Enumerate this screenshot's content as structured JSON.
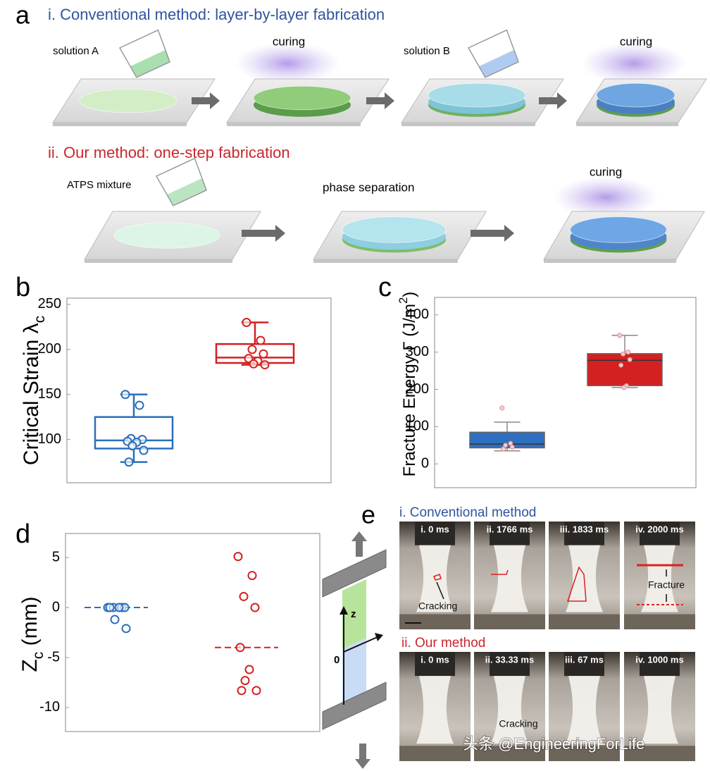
{
  "panel_a": {
    "label": "a",
    "conventional": {
      "title": "i. Conventional method: layer-by-layer fabrication",
      "steps": [
        "solution A",
        "curing",
        "solution B",
        "curing"
      ]
    },
    "ours": {
      "title": "ii. Our method: one-step fabrication",
      "steps": [
        "ATPS mixture",
        "phase separation",
        "curing"
      ]
    }
  },
  "chart_data": [
    {
      "type": "box",
      "panel_label": "b",
      "ylabel": {
        "text": "Critical Strain λ",
        "subscript": "c"
      },
      "ylim": [
        52,
        257
      ],
      "yticks": [
        100,
        150,
        200,
        250
      ],
      "filled": false,
      "series": [
        {
          "color": "#2a6ebb",
          "box": {
            "min": 75,
            "q1": 90,
            "median": 99,
            "q3": 125,
            "max": 150
          },
          "points": [
            150,
            138,
            101,
            100,
            98,
            97,
            93,
            88,
            75
          ]
        },
        {
          "color": "#d42020",
          "box": {
            "min": 183,
            "q1": 185,
            "median": 191,
            "q3": 206,
            "max": 230
          },
          "points": [
            230,
            210,
            200,
            195,
            190,
            187,
            184,
            183
          ]
        }
      ]
    },
    {
      "type": "box",
      "panel_label": "c",
      "ylabel": {
        "text": "Fracture Energy Γ (J/m",
        "superscript": "2",
        "suffix": ")"
      },
      "ylim": [
        -64,
        447
      ],
      "yticks": [
        0,
        100,
        200,
        300,
        400
      ],
      "filled": true,
      "series": [
        {
          "color": "#2f6fbf",
          "box": {
            "min": 35,
            "q1": 43,
            "median": 53,
            "q3": 85,
            "max": 112
          },
          "points": [
            150,
            55,
            50,
            45,
            40
          ]
        },
        {
          "color": "#d42020",
          "box": {
            "min": 205,
            "q1": 210,
            "median": 278,
            "q3": 296,
            "max": 345
          },
          "points": [
            345,
            300,
            295,
            280,
            265,
            210,
            205
          ]
        }
      ]
    },
    {
      "type": "strip",
      "panel_label": "d",
      "ylabel": {
        "text": "Z",
        "subscript": "c",
        "suffix": " (mm)"
      },
      "ylim": [
        -12.4,
        7.4
      ],
      "yticks": [
        5,
        0,
        -5,
        -10
      ],
      "series": [
        {
          "color": "#2a6ebb",
          "mean": 0,
          "points": [
            0,
            0,
            0,
            0,
            0,
            0,
            -1.2,
            -2.1
          ]
        },
        {
          "color": "#d42020",
          "mean": -4,
          "points": [
            5.1,
            3.2,
            1.1,
            0,
            -4,
            -6.2,
            -7.3,
            -8.3,
            -8.3
          ]
        }
      ]
    }
  ],
  "schematic": {
    "axis_label": "z",
    "origin_label": "0"
  },
  "panel_e": {
    "label": "e",
    "conventional": {
      "title": "i. Conventional method",
      "frames": [
        "i. 0 ms",
        "ii. 1766 ms",
        "iii. 1833 ms",
        "iv. 2000 ms"
      ],
      "annotations": [
        "Cracking",
        "Fracture"
      ]
    },
    "ours": {
      "title": "ii. Our method",
      "frames": [
        "i. 0 ms",
        "ii. 33.33 ms",
        "iii. 67 ms",
        "iv. 1000 ms"
      ],
      "annotations": [
        "Cracking"
      ]
    }
  },
  "watermark": "头条 @EngineeringForLife"
}
